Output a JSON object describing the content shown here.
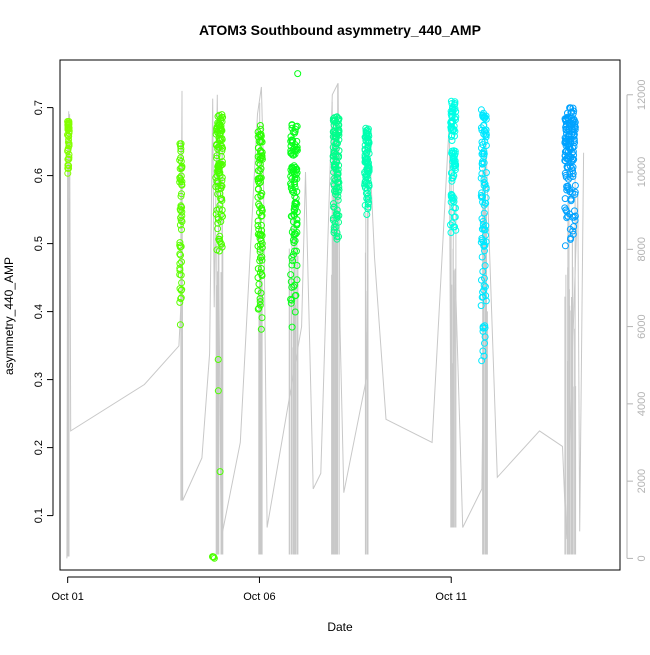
{
  "chart_data": {
    "type": "scatter",
    "title": "ATOM3 Southbound asymmetry_440_AMP",
    "xlabel": "Date",
    "ylabel": "asymmetry_440_AMP",
    "x_ticks": [
      {
        "label": "Oct 01",
        "day": 1
      },
      {
        "label": "Oct 06",
        "day": 6
      },
      {
        "label": "Oct 11",
        "day": 11
      }
    ],
    "xlim_days": [
      0.8,
      15.4
    ],
    "ylim": [
      0.02,
      0.77
    ],
    "y_ticks": [
      0.1,
      0.2,
      0.3,
      0.4,
      0.5,
      0.6,
      0.7
    ],
    "y2lim": [
      -300,
      12900
    ],
    "y2_ticks": [
      0,
      2000,
      4000,
      6000,
      8000,
      10000,
      12000
    ],
    "y2_tick_labels": [
      "0",
      "2000",
      "4000",
      "6000",
      "8000",
      "10000",
      "12000"
    ],
    "colors": {
      "secondary_series": "#c8c8c8",
      "gradient_start": "#84ff00",
      "gradient_mid": "#00ff66",
      "gradient_end": "#00a2ff"
    },
    "point_clusters": [
      {
        "day": 1.02,
        "width": 0.05,
        "n": 40,
        "ymin": 0.59,
        "ymax": 0.68,
        "color": "#84ff00"
      },
      {
        "day": 3.95,
        "width": 0.06,
        "n": 55,
        "ymin": 0.37,
        "ymax": 0.65,
        "color": "#5dff00"
      },
      {
        "day": 4.95,
        "width": 0.18,
        "n": 110,
        "ymin": 0.48,
        "ymax": 0.69,
        "color": "#4dff00"
      },
      {
        "day": 4.95,
        "width": 0.1,
        "n": 3,
        "ymin": 0.15,
        "ymax": 0.38,
        "color": "#4dff00"
      },
      {
        "day": 4.8,
        "width": 0.06,
        "n": 5,
        "ymin": 0.037,
        "ymax": 0.042,
        "color": "#4dff00"
      },
      {
        "day": 6.02,
        "width": 0.12,
        "n": 90,
        "ymin": 0.37,
        "ymax": 0.68,
        "color": "#2aff00"
      },
      {
        "day": 6.9,
        "width": 0.18,
        "n": 110,
        "ymin": 0.37,
        "ymax": 0.68,
        "color": "#08ff1a"
      },
      {
        "day": 7.0,
        "width": 0.02,
        "n": 1,
        "ymin": 0.75,
        "ymax": 0.75,
        "color": "#08ff1a"
      },
      {
        "day": 8.0,
        "width": 0.16,
        "n": 110,
        "ymin": 0.5,
        "ymax": 0.69,
        "color": "#00ff8c"
      },
      {
        "day": 8.8,
        "width": 0.12,
        "n": 90,
        "ymin": 0.54,
        "ymax": 0.67,
        "color": "#00ffb0"
      },
      {
        "day": 11.05,
        "width": 0.14,
        "n": 90,
        "ymin": 0.51,
        "ymax": 0.71,
        "color": "#00ffe6"
      },
      {
        "day": 11.85,
        "width": 0.14,
        "n": 100,
        "ymin": 0.32,
        "ymax": 0.7,
        "color": "#00e8ff"
      },
      {
        "day": 14.1,
        "width": 0.28,
        "n": 150,
        "ymin": 0.49,
        "ymax": 0.7,
        "color": "#00a2ff"
      }
    ],
    "secondary_series": {
      "name": "",
      "points": [
        [
          0.98,
          1.5
        ],
        [
          1.0,
          10000
        ],
        [
          1.05,
          11500
        ],
        [
          1.08,
          3300
        ],
        [
          3.0,
          4500
        ],
        [
          3.9,
          5500
        ],
        [
          3.95,
          6500
        ],
        [
          3.98,
          12100
        ],
        [
          4.0,
          1500
        ],
        [
          4.5,
          2600
        ],
        [
          4.7,
          5300
        ],
        [
          4.78,
          11900
        ],
        [
          4.82,
          6500
        ],
        [
          4.9,
          12000
        ],
        [
          5.0,
          500
        ],
        [
          5.5,
          3000
        ],
        [
          5.95,
          11500
        ],
        [
          6.05,
          12200
        ],
        [
          6.1,
          10300
        ],
        [
          6.2,
          800
        ],
        [
          7.1,
          6000
        ],
        [
          7.2,
          10000
        ],
        [
          7.4,
          1800
        ],
        [
          7.6,
          2200
        ],
        [
          7.9,
          12000
        ],
        [
          8.05,
          12300
        ],
        [
          8.1,
          6000
        ],
        [
          8.2,
          1700
        ],
        [
          8.8,
          4700
        ],
        [
          8.85,
          11000
        ],
        [
          9.0,
          7800
        ],
        [
          9.3,
          3600
        ],
        [
          10.5,
          3000
        ],
        [
          10.95,
          11300
        ],
        [
          11.0,
          1200
        ],
        [
          11.1,
          7500
        ],
        [
          11.3,
          800
        ],
        [
          11.8,
          1800
        ],
        [
          11.9,
          10800
        ],
        [
          12.2,
          2100
        ],
        [
          13.3,
          3300
        ],
        [
          13.9,
          2900
        ],
        [
          14.0,
          500
        ],
        [
          14.3,
          9500
        ],
        [
          14.35,
          700
        ],
        [
          14.45,
          10500
        ]
      ]
    },
    "secondary_spikes": [
      {
        "day": 1.02,
        "width": 0.06,
        "n": 5,
        "min": 50,
        "max": 11600
      },
      {
        "day": 3.97,
        "width": 0.06,
        "n": 4,
        "min": 1500,
        "max": 12100
      },
      {
        "day": 4.95,
        "width": 0.2,
        "n": 12,
        "min": 100,
        "max": 11900
      },
      {
        "day": 6.02,
        "width": 0.15,
        "n": 12,
        "min": 100,
        "max": 12200
      },
      {
        "day": 6.9,
        "width": 0.25,
        "n": 14,
        "min": 100,
        "max": 10200
      },
      {
        "day": 7.98,
        "width": 0.2,
        "n": 14,
        "min": 100,
        "max": 12300
      },
      {
        "day": 8.8,
        "width": 0.15,
        "n": 10,
        "min": 100,
        "max": 11000
      },
      {
        "day": 11.05,
        "width": 0.15,
        "n": 10,
        "min": 800,
        "max": 11300
      },
      {
        "day": 11.88,
        "width": 0.15,
        "n": 10,
        "min": 100,
        "max": 10800
      },
      {
        "day": 14.1,
        "width": 0.3,
        "n": 18,
        "min": 100,
        "max": 10500
      }
    ]
  }
}
